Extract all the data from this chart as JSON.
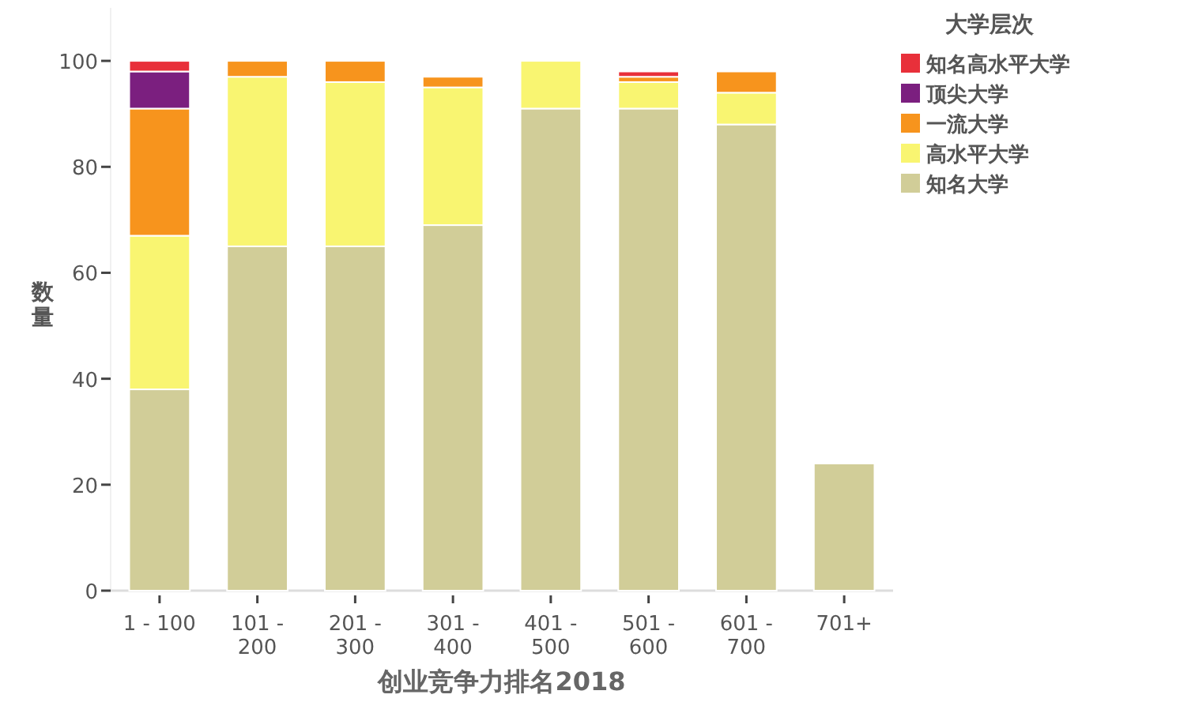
{
  "chart_data": {
    "type": "bar",
    "stacked": true,
    "xlabel": "创业竞争力排名2018",
    "ylabel": "数量",
    "legend_title": "大学层次",
    "legend": "top right",
    "grid": false,
    "categories": [
      "1 - 100",
      "101 - 200",
      "201 - 300",
      "301 - 400",
      "401 - 500",
      "501 - 600",
      "601 - 700",
      "701+"
    ],
    "ylim": [
      0,
      110
    ],
    "yticks": [
      0,
      20,
      40,
      60,
      80,
      100
    ],
    "series": [
      {
        "name": "知名大学",
        "color": "#d1cd98",
        "values": [
          38,
          65,
          65,
          69,
          91,
          91,
          88,
          24
        ]
      },
      {
        "name": "高水平大学",
        "color": "#f9f571",
        "values": [
          29,
          32,
          31,
          26,
          9,
          5,
          6,
          null
        ]
      },
      {
        "name": "一流大学",
        "color": "#f7941d",
        "values": [
          24,
          3,
          4,
          2,
          null,
          1,
          4,
          null
        ]
      },
      {
        "name": "顶尖大学",
        "color": "#7b1f7f",
        "values": [
          7,
          null,
          null,
          null,
          null,
          null,
          null,
          null
        ]
      },
      {
        "name": "知名高水平大学",
        "color": "#e8303a",
        "values": [
          2,
          null,
          null,
          null,
          null,
          1,
          null,
          null
        ]
      }
    ]
  }
}
